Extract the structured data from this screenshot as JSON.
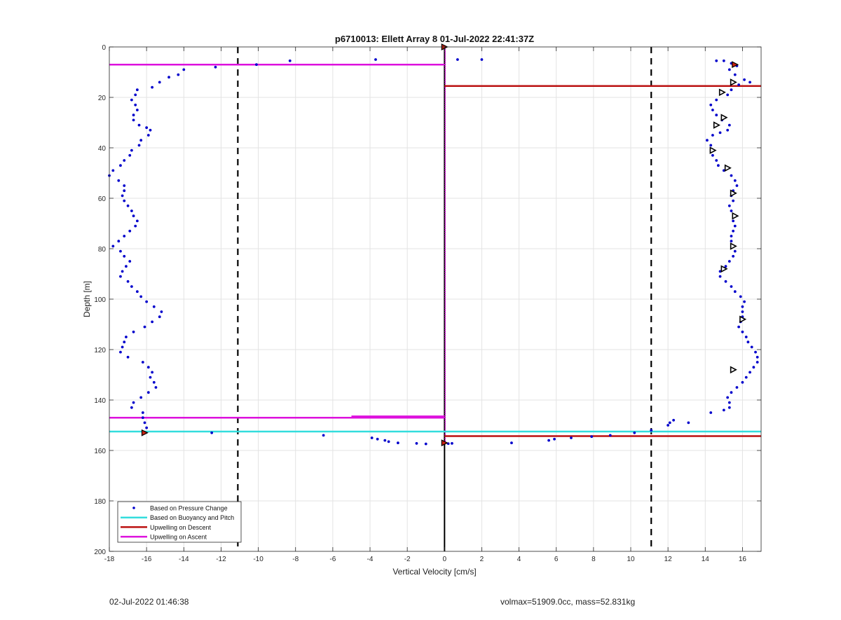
{
  "footer": {
    "left_text": "02-Jul-2022 01:46:38",
    "right_text": "volmax=51909.0cc, mass=52.831kg"
  },
  "chart_data": {
    "type": "scatter",
    "title": "p6710013: Ellett Array 8 01-Jul-2022 22:41:37Z",
    "xlabel": "Vertical Velocity [cm/s]",
    "ylabel": "Depth [m]",
    "xlim": [
      -18,
      17
    ],
    "ylim": [
      200,
      0
    ],
    "y_reversed": true,
    "grid": true,
    "xticks": [
      -18,
      -16,
      -14,
      -12,
      -10,
      -8,
      -6,
      -4,
      -2,
      0,
      2,
      4,
      6,
      8,
      10,
      12,
      14,
      16
    ],
    "yticks": [
      0,
      20,
      40,
      60,
      80,
      100,
      120,
      140,
      160,
      180,
      200
    ],
    "legend_position": "bottom-left",
    "legend": [
      {
        "label": "Based on Pressure Change",
        "style": "dot",
        "color": "#0000cc"
      },
      {
        "label": "Based on Buoyancy and Pitch",
        "style": "line",
        "color": "#33dddd"
      },
      {
        "label": "Upwelling on Descent",
        "style": "line",
        "color": "#bb1111"
      },
      {
        "label": "Upwelling on Ascent",
        "style": "line",
        "color": "#dd11dd"
      }
    ],
    "pressure_change_points": {
      "color": "#0000cc",
      "descent": [
        [
          -14.0,
          9
        ],
        [
          -14.3,
          11
        ],
        [
          -14.8,
          12
        ],
        [
          -15.3,
          14
        ],
        [
          -15.7,
          16
        ],
        [
          -16.5,
          17
        ],
        [
          -16.6,
          19
        ],
        [
          -16.8,
          21
        ],
        [
          -16.6,
          23
        ],
        [
          -16.5,
          25
        ],
        [
          -16.7,
          27
        ],
        [
          -16.7,
          29
        ],
        [
          -16.4,
          31
        ],
        [
          -16.0,
          32
        ],
        [
          -15.8,
          33
        ],
        [
          -15.9,
          35
        ],
        [
          -16.3,
          37
        ],
        [
          -16.4,
          39
        ],
        [
          -16.8,
          41
        ],
        [
          -16.9,
          43
        ],
        [
          -17.2,
          45
        ],
        [
          -17.4,
          47
        ],
        [
          -17.8,
          49
        ],
        [
          -18.0,
          51
        ],
        [
          -17.5,
          53
        ],
        [
          -17.2,
          55
        ],
        [
          -17.2,
          57
        ],
        [
          -17.3,
          59
        ],
        [
          -17.2,
          61
        ],
        [
          -17.0,
          63
        ],
        [
          -16.8,
          65
        ],
        [
          -16.7,
          67
        ],
        [
          -16.5,
          69
        ],
        [
          -16.6,
          71
        ],
        [
          -16.9,
          73
        ],
        [
          -17.2,
          75
        ],
        [
          -17.5,
          77
        ],
        [
          -17.8,
          79
        ],
        [
          -17.4,
          81
        ],
        [
          -17.2,
          83
        ],
        [
          -16.9,
          85
        ],
        [
          -17.1,
          87
        ],
        [
          -17.3,
          89
        ],
        [
          -17.4,
          91
        ],
        [
          -17.0,
          93
        ],
        [
          -16.8,
          95
        ],
        [
          -16.5,
          97
        ],
        [
          -16.3,
          99
        ],
        [
          -16.0,
          101
        ],
        [
          -15.6,
          103
        ],
        [
          -15.2,
          105
        ],
        [
          -15.3,
          107
        ],
        [
          -15.7,
          109
        ],
        [
          -16.1,
          111
        ],
        [
          -16.7,
          113
        ],
        [
          -17.1,
          115
        ],
        [
          -17.2,
          117
        ],
        [
          -17.3,
          119
        ],
        [
          -17.4,
          121
        ],
        [
          -17.0,
          123
        ],
        [
          -16.2,
          125
        ],
        [
          -15.9,
          127
        ],
        [
          -15.7,
          129
        ],
        [
          -15.8,
          131
        ],
        [
          -15.6,
          133
        ],
        [
          -15.5,
          135
        ],
        [
          -15.9,
          137
        ],
        [
          -16.3,
          139
        ],
        [
          -16.7,
          141
        ],
        [
          -16.8,
          143
        ],
        [
          -16.2,
          145
        ],
        [
          -16.2,
          147
        ],
        [
          -16.1,
          149
        ],
        [
          -16.0,
          151
        ],
        [
          -16.1,
          153
        ],
        [
          -12.5,
          153
        ],
        [
          -6.5,
          154
        ],
        [
          -3.9,
          155
        ],
        [
          -3.6,
          155.5
        ],
        [
          -3.2,
          156
        ],
        [
          -3.0,
          156.5
        ],
        [
          -2.5,
          157
        ],
        [
          -1.5,
          157.2
        ],
        [
          -1.0,
          157.4
        ],
        [
          0.2,
          157.3
        ],
        [
          0.4,
          157.2
        ]
      ],
      "ascent": [
        [
          3.6,
          157
        ],
        [
          5.6,
          156
        ],
        [
          5.9,
          155.5
        ],
        [
          6.8,
          155
        ],
        [
          7.9,
          154.5
        ],
        [
          8.9,
          154
        ],
        [
          10.2,
          153
        ],
        [
          11.1,
          152
        ],
        [
          12.0,
          150
        ],
        [
          12.1,
          149
        ],
        [
          12.3,
          148
        ],
        [
          13.1,
          149
        ],
        [
          14.3,
          145
        ],
        [
          15.0,
          144
        ],
        [
          15.3,
          143
        ],
        [
          15.3,
          141
        ],
        [
          15.2,
          139
        ],
        [
          15.4,
          137
        ],
        [
          15.7,
          135
        ],
        [
          16.0,
          133
        ],
        [
          16.2,
          131
        ],
        [
          16.4,
          129
        ],
        [
          16.6,
          127
        ],
        [
          16.8,
          125
        ],
        [
          16.8,
          123
        ],
        [
          16.7,
          121
        ],
        [
          16.5,
          119
        ],
        [
          16.3,
          117
        ],
        [
          16.2,
          115
        ],
        [
          16.0,
          113
        ],
        [
          15.8,
          111
        ],
        [
          15.9,
          109
        ],
        [
          16.0,
          107
        ],
        [
          16.0,
          105
        ],
        [
          16.0,
          103
        ],
        [
          16.1,
          101
        ],
        [
          15.9,
          99
        ],
        [
          15.6,
          97
        ],
        [
          15.4,
          95
        ],
        [
          15.1,
          93
        ],
        [
          14.8,
          91
        ],
        [
          14.8,
          89
        ],
        [
          15.1,
          87
        ],
        [
          15.3,
          85
        ],
        [
          15.5,
          83
        ],
        [
          15.6,
          81
        ],
        [
          15.5,
          79
        ],
        [
          15.4,
          77
        ],
        [
          15.4,
          75
        ],
        [
          15.5,
          73
        ],
        [
          15.6,
          71
        ],
        [
          15.5,
          69
        ],
        [
          15.6,
          67
        ],
        [
          15.4,
          65
        ],
        [
          15.3,
          63
        ],
        [
          15.5,
          61
        ],
        [
          15.4,
          59
        ],
        [
          15.5,
          57
        ],
        [
          15.7,
          55
        ],
        [
          15.6,
          53
        ],
        [
          15.4,
          51
        ],
        [
          15.0,
          49
        ],
        [
          14.7,
          47
        ],
        [
          14.6,
          45
        ],
        [
          14.4,
          43
        ],
        [
          14.4,
          41
        ],
        [
          14.3,
          39
        ],
        [
          14.1,
          37
        ],
        [
          14.4,
          35
        ],
        [
          14.8,
          34
        ],
        [
          15.2,
          33
        ],
        [
          15.3,
          31
        ],
        [
          14.9,
          29
        ],
        [
          14.6,
          27
        ],
        [
          14.4,
          25
        ],
        [
          14.3,
          23
        ],
        [
          14.6,
          21
        ],
        [
          15.2,
          19
        ],
        [
          15.4,
          17
        ],
        [
          15.8,
          15
        ],
        [
          16.4,
          14
        ],
        [
          16.1,
          13
        ],
        [
          15.6,
          11
        ],
        [
          15.3,
          9
        ],
        [
          15.7,
          7.5
        ],
        [
          15.4,
          6.5
        ],
        [
          15.0,
          5.5
        ],
        [
          14.6,
          5.5
        ],
        [
          2.0,
          5
        ],
        [
          0.7,
          5
        ],
        [
          -3.7,
          5
        ],
        [
          -8.3,
          5.5
        ],
        [
          -10.1,
          7
        ],
        [
          -12.3,
          8
        ]
      ]
    },
    "triangle_markers": {
      "color": "#000000",
      "points": [
        [
          15.5,
          14
        ],
        [
          14.9,
          18
        ],
        [
          15.0,
          28
        ],
        [
          14.6,
          31
        ],
        [
          14.4,
          41
        ],
        [
          15.2,
          48
        ],
        [
          15.5,
          58
        ],
        [
          15.6,
          67
        ],
        [
          15.5,
          79
        ],
        [
          15.0,
          88
        ],
        [
          16.0,
          108
        ],
        [
          15.5,
          128
        ]
      ]
    },
    "event_markers": {
      "color": "#cc2211",
      "points": [
        [
          0,
          0
        ],
        [
          15.6,
          7
        ],
        [
          -16.1,
          153
        ],
        [
          0,
          157
        ]
      ]
    },
    "upwelling_on_ascent": {
      "color": "#dd11dd",
      "segments": [
        {
          "depth": 7,
          "x_from": -18,
          "x_to": 0
        },
        {
          "depth": 147,
          "x_from": -18,
          "x_to": 0
        },
        {
          "depth": 147,
          "x_from": -5,
          "x_to": 0,
          "offset_depth": 146.5
        }
      ],
      "vertical": {
        "x": 0,
        "depth_from": 0,
        "depth_to": 157
      }
    },
    "upwelling_on_descent": {
      "color": "#bb1111",
      "segments": [
        {
          "depth": 15.5,
          "x_from": 0,
          "x_to": 17
        },
        {
          "depth": 154.3,
          "x_from": 0,
          "x_to": 17
        }
      ]
    },
    "buoyancy_pitch": {
      "color": "#33dddd",
      "segments": [
        {
          "depth": 152.5,
          "x_from": -18,
          "x_to": 17
        }
      ]
    },
    "zero_line": {
      "x": 0,
      "color": "#000000"
    },
    "dashed_limits": {
      "x": [
        -11.1,
        11.1
      ],
      "color": "#000000"
    }
  }
}
